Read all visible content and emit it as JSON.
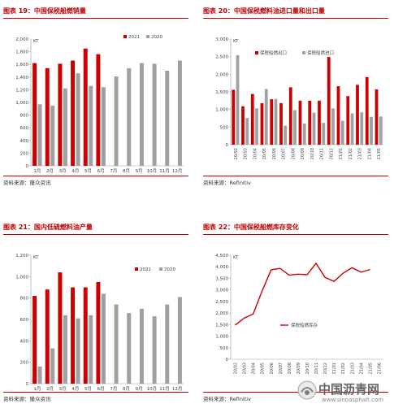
{
  "panels": [
    {
      "title": "图表 19：中国保税船燃销量",
      "source": "资料来源：隆众资讯",
      "chart_data": {
        "type": "bar",
        "ylabel": "KT",
        "ylim": [
          0,
          2000
        ],
        "yticks": [
          "0",
          "200",
          "400",
          "600",
          "800",
          "1,000",
          "1,200",
          "1,400",
          "1,600",
          "1,800",
          "2,000"
        ],
        "categories": [
          "1月",
          "2月",
          "3月",
          "4月",
          "5月",
          "6月",
          "7月",
          "8月",
          "9月",
          "10月",
          "11月",
          "12月"
        ],
        "legend_position": "top-center",
        "series": [
          {
            "name": "2021",
            "color": "#cc0000",
            "values": [
              1620,
              1540,
              1610,
              1660,
              1850,
              1760,
              null,
              null,
              null,
              null,
              null,
              null
            ]
          },
          {
            "name": "2020",
            "color": "#a0a0a0",
            "values": [
              970,
              950,
              1220,
              1460,
              1260,
              1240,
              1410,
              1540,
              1620,
              1610,
              1500,
              1660
            ]
          }
        ]
      }
    },
    {
      "title": "图表 20：中国保税燃料油进口量和出口量",
      "source": "资料来源：Refinitiv",
      "chart_data": {
        "type": "bar",
        "ylabel": "KT",
        "ylim": [
          0,
          3000
        ],
        "yticks": [
          "0",
          "500",
          "1,000",
          "1,500",
          "2,000",
          "2,500",
          "3,000"
        ],
        "categories": [
          "20/02",
          "20/03",
          "20/04",
          "20/05",
          "20/06",
          "20/07",
          "20/08",
          "20/09",
          "20/10",
          "20/11",
          "20/12",
          "21/01",
          "21/02",
          "21/03",
          "21/04",
          "21/05"
        ],
        "legend_position": "top-center",
        "series": [
          {
            "name": "保税船燃出口",
            "color": "#cc0000",
            "values": [
              1560,
              1090,
              1440,
              1180,
              1290,
              1180,
              1630,
              1250,
              1250,
              1250,
              2490,
              1660,
              1380,
              1700,
              1920,
              1570
            ]
          },
          {
            "name": "保税船燃进口",
            "color": "#a0a0a0",
            "values": [
              2540,
              760,
              1030,
              1580,
              1300,
              540,
              980,
              600,
              910,
              620,
              1030,
              680,
              890,
              920,
              790,
              800
            ]
          }
        ]
      }
    },
    {
      "title": "图表 21：国内低硫燃料油产量",
      "source": "资料来源：隆众资讯",
      "chart_data": {
        "type": "bar",
        "ylabel": "KT",
        "ylim": [
          0,
          1200
        ],
        "yticks": [
          "0",
          "200",
          "400",
          "600",
          "800",
          "1,000",
          "1,200"
        ],
        "categories": [
          "1月",
          "2月",
          "3月",
          "4月",
          "5月",
          "6月",
          "7月",
          "8月",
          "9月",
          "10月",
          "11月",
          "12月"
        ],
        "legend_position": "top-center",
        "series": [
          {
            "name": "2021",
            "color": "#cc0000",
            "values": [
              820,
              880,
              1040,
              900,
              900,
              950,
              null,
              null,
              null,
              null,
              null,
              null
            ]
          },
          {
            "name": "2020",
            "color": "#a0a0a0",
            "values": [
              160,
              330,
              640,
              610,
              640,
              840,
              740,
              660,
              700,
              630,
              740,
              810
            ]
          }
        ]
      }
    },
    {
      "title": "图表 22：中国保税船燃库存变化",
      "source": "资料来源：Refinitiv",
      "chart_data": {
        "type": "line",
        "ylabel": "KT",
        "ylim": [
          0,
          4500
        ],
        "yticks": [
          "0",
          "500",
          "1,000",
          "1,500",
          "2,000",
          "2,500",
          "3,000",
          "3,500",
          "4,000",
          "4,500"
        ],
        "x": [
          "20/02",
          "20/03",
          "20/04",
          "20/05",
          "20/06",
          "20/07",
          "20/08",
          "20/09",
          "20/10",
          "20/11",
          "20/12",
          "21/01",
          "21/02",
          "21/03",
          "21/04",
          "21/05",
          "21/06"
        ],
        "legend_position": "center",
        "series": [
          {
            "name": "保税船燃库存",
            "color": "#cc0000",
            "values": [
              1480,
              1780,
              1960,
              2960,
              3870,
              3930,
              3640,
              3680,
              3660,
              4150,
              3540,
              3370,
              3720,
              3960,
              3770,
              3880,
              null
            ]
          }
        ]
      }
    }
  ],
  "watermark": {
    "name": "中国沥青网",
    "url": "www.sinoasphalt.com"
  }
}
